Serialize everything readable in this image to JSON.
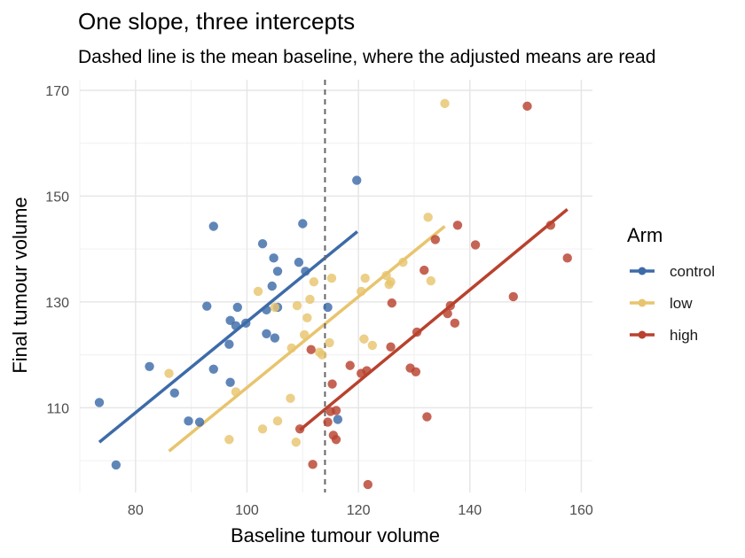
{
  "chart_data": {
    "type": "scatter",
    "title": "One slope, three intercepts",
    "subtitle": "Dashed line is the mean baseline, where the adjusted means are read",
    "xlabel": "Baseline tumour volume",
    "ylabel": "Final tumour volume",
    "xlim": [
      70,
      162
    ],
    "ylim": [
      94,
      172
    ],
    "x_ticks": [
      80,
      100,
      120,
      140,
      160
    ],
    "y_ticks": [
      110,
      130,
      150,
      170
    ],
    "grid": true,
    "mean_baseline": 114,
    "legend": {
      "title": "Arm",
      "position": "right"
    },
    "series": [
      {
        "name": "control",
        "color": "#3d6ba8",
        "line": {
          "x": [
            73.5,
            119.8
          ],
          "y": [
            103.5,
            143.3
          ]
        },
        "points": [
          {
            "x": 73.5,
            "y": 111
          },
          {
            "x": 76.5,
            "y": 99.2
          },
          {
            "x": 82.5,
            "y": 117.8
          },
          {
            "x": 87,
            "y": 112.8
          },
          {
            "x": 89.5,
            "y": 107.5
          },
          {
            "x": 91.5,
            "y": 107.3
          },
          {
            "x": 92.8,
            "y": 129.2
          },
          {
            "x": 94,
            "y": 117.3
          },
          {
            "x": 94,
            "y": 144.3
          },
          {
            "x": 96.8,
            "y": 122
          },
          {
            "x": 97,
            "y": 126.5
          },
          {
            "x": 97,
            "y": 114.8
          },
          {
            "x": 98,
            "y": 125.5
          },
          {
            "x": 98.3,
            "y": 129
          },
          {
            "x": 99.8,
            "y": 126
          },
          {
            "x": 102.8,
            "y": 141
          },
          {
            "x": 103.5,
            "y": 128.5
          },
          {
            "x": 103.5,
            "y": 124
          },
          {
            "x": 104.5,
            "y": 133
          },
          {
            "x": 104.8,
            "y": 138.3
          },
          {
            "x": 105,
            "y": 123.2
          },
          {
            "x": 105.5,
            "y": 135.8
          },
          {
            "x": 105.5,
            "y": 129
          },
          {
            "x": 109.3,
            "y": 137.5
          },
          {
            "x": 110,
            "y": 144.8
          },
          {
            "x": 110.5,
            "y": 135.8
          },
          {
            "x": 114.5,
            "y": 129
          },
          {
            "x": 116.3,
            "y": 107.8
          },
          {
            "x": 119.7,
            "y": 153
          }
        ]
      },
      {
        "name": "low",
        "color": "#e8c46e",
        "line": {
          "x": [
            86,
            135.5
          ],
          "y": [
            101.8,
            144.3
          ]
        },
        "points": [
          {
            "x": 86,
            "y": 116.5
          },
          {
            "x": 96.8,
            "y": 104
          },
          {
            "x": 98,
            "y": 113
          },
          {
            "x": 102,
            "y": 132
          },
          {
            "x": 102.8,
            "y": 106
          },
          {
            "x": 105,
            "y": 129
          },
          {
            "x": 105.5,
            "y": 107.5
          },
          {
            "x": 107.8,
            "y": 111.8
          },
          {
            "x": 108,
            "y": 121.3
          },
          {
            "x": 108.8,
            "y": 103.5
          },
          {
            "x": 109,
            "y": 129.3
          },
          {
            "x": 110.3,
            "y": 123.8
          },
          {
            "x": 110.8,
            "y": 127
          },
          {
            "x": 111.3,
            "y": 130.5
          },
          {
            "x": 112,
            "y": 133.8
          },
          {
            "x": 113,
            "y": 120.5
          },
          {
            "x": 113.5,
            "y": 120
          },
          {
            "x": 114.8,
            "y": 122.3
          },
          {
            "x": 115.2,
            "y": 134.5
          },
          {
            "x": 120.5,
            "y": 132
          },
          {
            "x": 121,
            "y": 123
          },
          {
            "x": 121.2,
            "y": 134.5
          },
          {
            "x": 122.5,
            "y": 121.8
          },
          {
            "x": 125,
            "y": 135
          },
          {
            "x": 125.5,
            "y": 133.3
          },
          {
            "x": 125.8,
            "y": 133.8
          },
          {
            "x": 128,
            "y": 137.5
          },
          {
            "x": 132.5,
            "y": 146
          },
          {
            "x": 133,
            "y": 134
          },
          {
            "x": 135.5,
            "y": 167.5
          }
        ]
      },
      {
        "name": "high",
        "color": "#b8422e",
        "line": {
          "x": [
            109.5,
            157.5
          ],
          "y": [
            105.8,
            147.5
          ]
        },
        "points": [
          {
            "x": 109.5,
            "y": 106
          },
          {
            "x": 111.5,
            "y": 121
          },
          {
            "x": 111.8,
            "y": 99.3
          },
          {
            "x": 114.5,
            "y": 107.3
          },
          {
            "x": 115,
            "y": 109.3
          },
          {
            "x": 115.3,
            "y": 114.5
          },
          {
            "x": 115.5,
            "y": 104.8
          },
          {
            "x": 116,
            "y": 104
          },
          {
            "x": 116,
            "y": 109.5
          },
          {
            "x": 118.5,
            "y": 118
          },
          {
            "x": 120.5,
            "y": 116.5
          },
          {
            "x": 121.5,
            "y": 117
          },
          {
            "x": 121.7,
            "y": 95.5
          },
          {
            "x": 125.8,
            "y": 121.5
          },
          {
            "x": 126,
            "y": 129.8
          },
          {
            "x": 129.3,
            "y": 117.5
          },
          {
            "x": 130.3,
            "y": 116.8
          },
          {
            "x": 130.5,
            "y": 124.3
          },
          {
            "x": 131.8,
            "y": 136
          },
          {
            "x": 132.3,
            "y": 108.3
          },
          {
            "x": 133.8,
            "y": 141.8
          },
          {
            "x": 136,
            "y": 127.8
          },
          {
            "x": 136.5,
            "y": 129.3
          },
          {
            "x": 137.3,
            "y": 126
          },
          {
            "x": 137.8,
            "y": 144.5
          },
          {
            "x": 141,
            "y": 140.8
          },
          {
            "x": 147.8,
            "y": 131
          },
          {
            "x": 150.3,
            "y": 167
          },
          {
            "x": 154.5,
            "y": 144.5
          },
          {
            "x": 157.5,
            "y": 138.3
          }
        ]
      }
    ]
  }
}
